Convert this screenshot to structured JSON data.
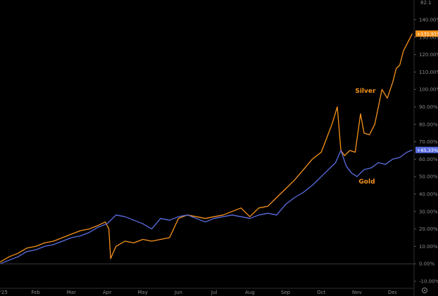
{
  "chart_data": {
    "type": "line",
    "title": "",
    "xlabel": "",
    "ylabel": "",
    "ylim": [
      -10,
      140
    ],
    "y_ticks": [
      -10,
      0,
      10,
      20,
      30,
      40,
      50,
      60,
      70,
      80,
      90,
      100,
      110,
      120,
      130,
      140
    ],
    "y_tick_labels": [
      "-10.00%",
      "0.00%",
      "10.00%",
      "20.00%",
      "30.00%",
      "40.00%",
      "50.00%",
      "60.00%",
      "70.00%",
      "80.00%",
      "90.00%",
      "100.00%",
      "110.00%",
      "120.00%",
      "130.00%",
      "140.00%"
    ],
    "xlim": [
      0,
      11.6
    ],
    "x_ticks": [
      0,
      1,
      2,
      3,
      4,
      5,
      6,
      7,
      8,
      9,
      10,
      11
    ],
    "x_tick_labels": [
      "'25",
      "Feb",
      "Mar",
      "Apr",
      "May",
      "Jun",
      "Jul",
      "Aug",
      "Sep",
      "Oct",
      "Nov",
      "Dec"
    ],
    "top_axis_label": "82.1",
    "grid": false,
    "series": [
      {
        "name": "Silver",
        "color": "#f7931a",
        "end_label": "+131.91%",
        "x": [
          0,
          0.25,
          0.5,
          0.75,
          1.0,
          1.25,
          1.5,
          1.75,
          2.0,
          2.25,
          2.5,
          2.75,
          2.95,
          3.05,
          3.1,
          3.25,
          3.5,
          3.75,
          4.0,
          4.25,
          4.5,
          4.75,
          5.0,
          5.25,
          5.5,
          5.75,
          6.0,
          6.25,
          6.5,
          6.75,
          7.0,
          7.25,
          7.5,
          7.75,
          8.0,
          8.25,
          8.5,
          8.75,
          9.0,
          9.15,
          9.3,
          9.45,
          9.55,
          9.65,
          9.8,
          9.95,
          10.1,
          10.2,
          10.35,
          10.5,
          10.7,
          10.85,
          11.0,
          11.1,
          11.2,
          11.3,
          11.4,
          11.55
        ],
        "values": [
          1,
          4,
          6,
          9,
          10,
          12,
          13,
          15,
          17,
          19,
          20,
          22,
          24,
          20,
          3,
          10,
          13,
          12,
          14,
          13,
          14,
          15,
          26,
          28,
          27,
          26,
          27,
          28,
          30,
          32,
          27,
          32,
          33,
          38,
          43,
          48,
          54,
          60,
          64,
          72,
          80,
          90,
          65,
          62,
          65,
          64,
          86,
          75,
          74,
          80,
          100,
          95,
          104,
          112,
          114,
          122,
          126,
          132
        ]
      },
      {
        "name": "Gold",
        "color": "#5b6ee1",
        "end_label": "+65.33%",
        "x": [
          0,
          0.25,
          0.5,
          0.75,
          1.0,
          1.25,
          1.5,
          1.75,
          2.0,
          2.25,
          2.5,
          2.75,
          3.0,
          3.25,
          3.5,
          3.75,
          4.0,
          4.25,
          4.5,
          4.75,
          5.0,
          5.25,
          5.5,
          5.75,
          6.0,
          6.25,
          6.5,
          6.75,
          7.0,
          7.25,
          7.5,
          7.75,
          8.0,
          8.25,
          8.5,
          8.75,
          9.0,
          9.2,
          9.4,
          9.55,
          9.7,
          9.85,
          10.0,
          10.2,
          10.4,
          10.6,
          10.8,
          11.0,
          11.2,
          11.4,
          11.55
        ],
        "values": [
          0,
          2,
          4,
          7,
          8,
          10,
          11,
          13,
          15,
          16,
          18,
          21,
          23,
          28,
          27,
          25,
          23,
          20,
          26,
          25,
          27,
          28,
          26,
          24,
          26,
          27,
          28,
          27,
          26,
          28,
          29,
          28,
          34,
          38,
          41,
          45,
          50,
          54,
          58,
          65,
          56,
          52,
          50,
          54,
          55,
          58,
          57,
          60,
          61,
          64,
          65.3
        ]
      }
    ],
    "annotations": [
      {
        "text": "Silver",
        "color": "#f7931a",
        "x": 9.95,
        "y": 98
      },
      {
        "text": "Gold",
        "color": "#f7931a",
        "x": 10.05,
        "y": 46
      }
    ]
  }
}
